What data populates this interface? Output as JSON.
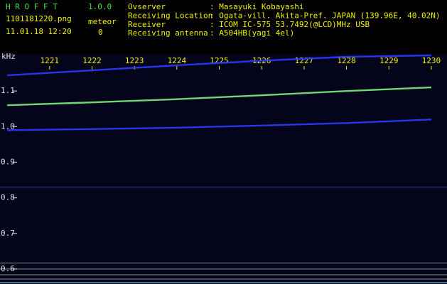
{
  "chart_data": {
    "type": "spectrogram",
    "app_name": "H R O F F T",
    "app_version": "1.0.0",
    "file_name": "1101181220.png",
    "timestamp": "11.01.18 12:20",
    "counter_label": "meteor",
    "counter_value": 0,
    "info": [
      {
        "label": "Ovserver",
        "value": ": Masayuki Kobayashi"
      },
      {
        "label": "Receiving Location",
        "value": ": Ogata-vill. Akita-Pref. JAPAN (139.96E, 40.02N)"
      },
      {
        "label": "Receiver",
        "value": ": ICOM IC-575 53.7492(@LCD)MHz USB"
      },
      {
        "label": "Receiving antenna",
        "value": ": A504HB(yagi 4el)"
      }
    ],
    "y_label": "kHz",
    "xlim": [
      1219.83,
      1230.37
    ],
    "xticks": [
      1221,
      1222,
      1223,
      1224,
      1225,
      1226,
      1227,
      1228,
      1229,
      1230
    ],
    "ylim": [
      0.558,
      1.204
    ],
    "yticks": [
      1.1,
      {
        "value": 1,
        "label": "1.0"
      },
      0.9,
      0.8,
      0.7,
      0.6
    ],
    "x": [
      1220,
      1222,
      1224,
      1226,
      1228,
      1230
    ],
    "series": [
      {
        "color": "#2a3cff",
        "values": [
          1.144,
          1.158,
          1.172,
          1.185,
          1.196,
          1.2
        ]
      },
      {
        "color": "#7cf07c",
        "values": [
          1.06,
          1.068,
          1.077,
          1.088,
          1.1,
          1.11
        ]
      },
      {
        "color": "#2a3cff",
        "values": [
          0.99,
          0.993,
          0.997,
          1.003,
          1.01,
          1.02
        ]
      }
    ],
    "hlines": [
      {
        "value": 0.83,
        "color": "#2438b8"
      },
      {
        "value": 0.617,
        "color": "#8a8a8a"
      },
      {
        "value": 0.6,
        "color": "#8a8a8a"
      },
      {
        "value": 0.584,
        "color": "#8a8a8a"
      },
      {
        "value": 0.572,
        "color": "#8a8a8a"
      },
      {
        "value": 0.562,
        "color": "#7fe0ff"
      }
    ]
  }
}
